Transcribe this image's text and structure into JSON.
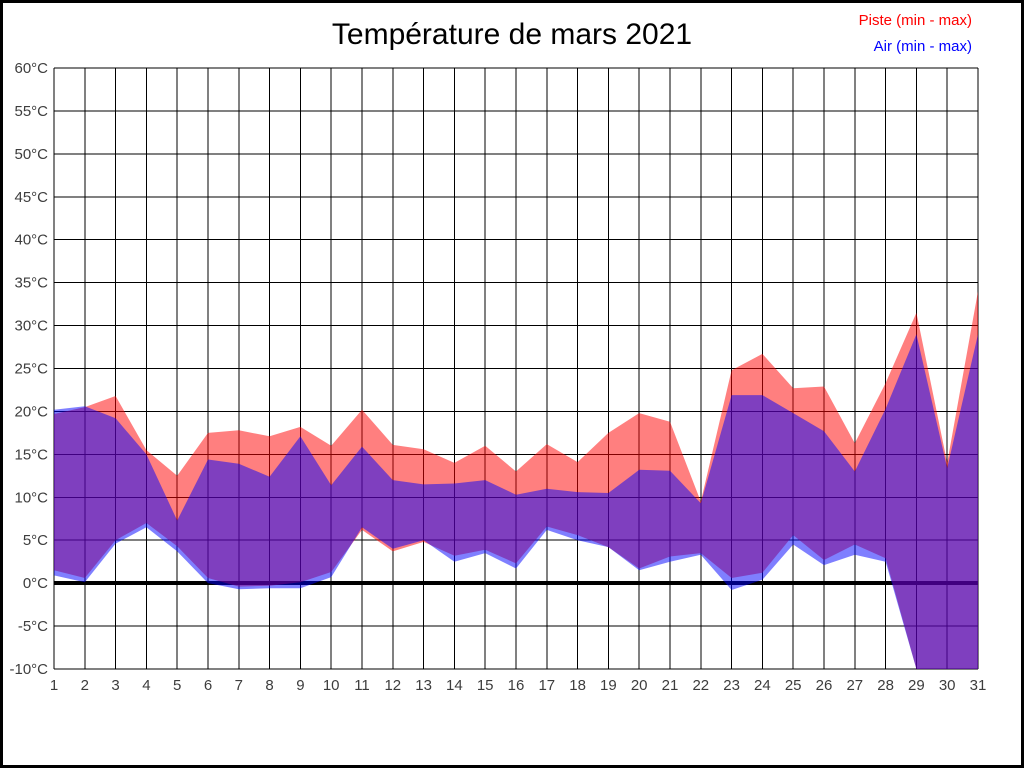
{
  "title": "Température de mars 2021",
  "legend": {
    "position": "top-right",
    "items": [
      {
        "label": "Piste (min - max)",
        "color": "#ff0000"
      },
      {
        "label": "Air (min - max)",
        "color": "#0000ff"
      }
    ]
  },
  "chart_data": {
    "type": "area",
    "title": "Température de mars 2021",
    "xlabel": "",
    "ylabel": "",
    "x": [
      1,
      2,
      3,
      4,
      5,
      6,
      7,
      8,
      9,
      10,
      11,
      12,
      13,
      14,
      15,
      16,
      17,
      18,
      19,
      20,
      21,
      22,
      23,
      24,
      25,
      26,
      27,
      28,
      29,
      30,
      31
    ],
    "x_ticks": [
      "1",
      "2",
      "3",
      "4",
      "5",
      "6",
      "7",
      "8",
      "9",
      "10",
      "11",
      "12",
      "13",
      "14",
      "15",
      "16",
      "17",
      "18",
      "19",
      "20",
      "21",
      "22",
      "23",
      "24",
      "25",
      "26",
      "27",
      "28",
      "29",
      "30",
      "31"
    ],
    "y_ticks": [
      "60°C",
      "55°C",
      "50°C",
      "45°C",
      "40°C",
      "35°C",
      "30°C",
      "25°C",
      "20°C",
      "15°C",
      "10°C",
      "5°C",
      "0°C",
      "-5°C",
      "-10°C"
    ],
    "ylim": [
      -10,
      60
    ],
    "y_tick_step": 5,
    "grid": true,
    "zero_line_bold": true,
    "series": [
      {
        "name": "Piste (min - max)",
        "id": "piste",
        "color": "#ff0000",
        "opacity": 0.5,
        "max": [
          19.7,
          20.5,
          21.8,
          15.5,
          12.5,
          17.5,
          17.8,
          17.1,
          18.2,
          16.0,
          20.2,
          16.1,
          15.6,
          14.0,
          16.0,
          13.0,
          16.2,
          14.1,
          17.5,
          19.8,
          18.8,
          9.5,
          24.8,
          26.7,
          22.7,
          22.9,
          16.3,
          23.3,
          31.5,
          14.0,
          34.0
        ],
        "min": [
          1.5,
          0.6,
          5.0,
          7.0,
          4.3,
          0.6,
          -0.4,
          -0.3,
          0.1,
          1.3,
          6.2,
          3.7,
          4.8,
          3.2,
          3.9,
          2.3,
          6.6,
          5.6,
          4.2,
          1.7,
          3.1,
          3.5,
          0.6,
          1.2,
          5.6,
          2.7,
          4.5,
          2.9,
          -10,
          -10,
          -10
        ]
      },
      {
        "name": "Air (min - max)",
        "id": "air",
        "color": "#0000ff",
        "opacity": 0.5,
        "max": [
          20.2,
          20.6,
          19.2,
          15.0,
          7.3,
          14.4,
          13.9,
          12.4,
          17.1,
          11.4,
          15.9,
          12.0,
          11.5,
          11.6,
          12.0,
          10.3,
          11.0,
          10.6,
          10.5,
          13.2,
          13.1,
          9.3,
          21.9,
          21.9,
          19.8,
          17.7,
          13.0,
          20.3,
          29.0,
          13.4,
          29.0
        ],
        "min": [
          0.9,
          0.1,
          4.6,
          6.5,
          3.7,
          0.0,
          -0.7,
          -0.6,
          -0.6,
          0.7,
          6.5,
          4.0,
          5.0,
          2.5,
          3.5,
          1.7,
          6.2,
          5.0,
          4.2,
          1.5,
          2.5,
          3.3,
          -0.8,
          0.4,
          4.5,
          2.1,
          3.3,
          2.5,
          -10,
          -10,
          -10
        ]
      }
    ]
  }
}
